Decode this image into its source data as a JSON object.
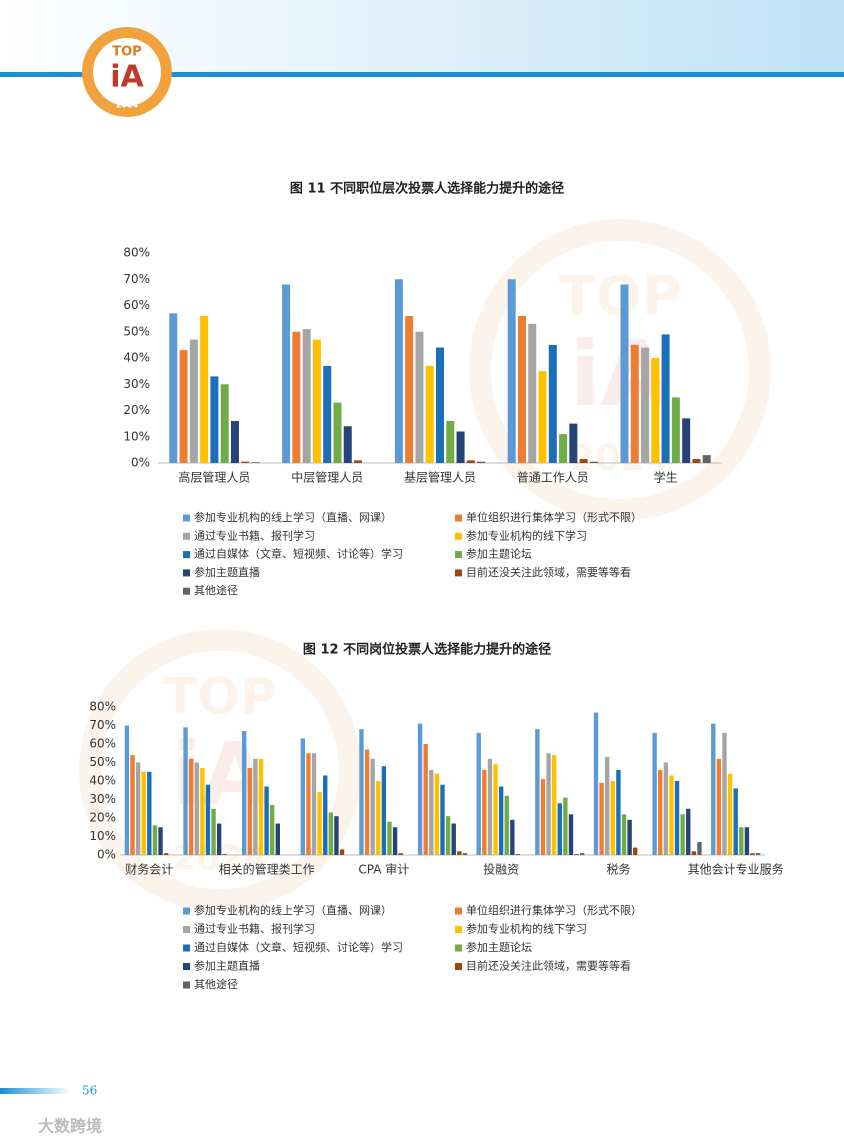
{
  "logo": {
    "top": "TOP",
    "mark": "iA",
    "year": "2024"
  },
  "page_number": "56",
  "source_mark": "大数跨境",
  "chart_data": [
    {
      "type": "bar",
      "title": "图 11 不同职位层次投票人选择能力提升的途径",
      "categories": [
        "高层管理人员",
        "中层管理人员",
        "基层管理人员",
        "普通工作人员",
        "学生"
      ],
      "ylim": [
        0,
        80
      ],
      "yticks": [
        {
          "value": 0,
          "label": "0%"
        },
        {
          "value": 10,
          "label": "10%"
        },
        {
          "value": 20,
          "label": "20%"
        },
        {
          "value": 30,
          "label": "30%"
        },
        {
          "value": 40,
          "label": "40%"
        },
        {
          "value": 50,
          "label": "50%"
        },
        {
          "value": 60,
          "label": "60%"
        },
        {
          "value": 70,
          "label": "70%"
        },
        {
          "value": 80,
          "label": "80%"
        }
      ],
      "series": [
        {
          "name": "参加专业机构的线上学习（直播、网课）",
          "color": "#5b9bd5",
          "values": [
            57,
            68,
            70,
            70,
            68
          ]
        },
        {
          "name": "单位组织进行集体学习（形式不限）",
          "color": "#ed7d31",
          "values": [
            43,
            50,
            56,
            56,
            45
          ]
        },
        {
          "name": "通过专业书籍、报刊学习",
          "color": "#a5a5a5",
          "values": [
            47,
            51,
            50,
            53,
            44
          ]
        },
        {
          "name": "参加专业机构的线下学习",
          "color": "#ffc000",
          "values": [
            56,
            47,
            37,
            35,
            40
          ]
        },
        {
          "name": "通过自媒体（文章、短视频、讨论等）学习",
          "color": "#1b6fb8",
          "values": [
            33,
            37,
            44,
            45,
            49
          ]
        },
        {
          "name": "参加主题论坛",
          "color": "#70ad47",
          "values": [
            30,
            23,
            16,
            11,
            25
          ]
        },
        {
          "name": "参加主题直播",
          "color": "#264478",
          "values": [
            16,
            14,
            12,
            15,
            17
          ]
        },
        {
          "name": "目前还没关注此领域，需要等等看",
          "color": "#9e480e",
          "values": [
            0.5,
            1,
            1,
            1.5,
            1.5
          ]
        },
        {
          "name": "其他途径",
          "color": "#636363",
          "values": [
            0.3,
            0,
            0.5,
            0.5,
            3
          ]
        }
      ]
    },
    {
      "type": "bar",
      "title": "图 12 不同岗位投票人选择能力提升的途径",
      "categories": [
        "财务会计",
        null,
        "相关的管理类工作",
        null,
        "CPA 审计",
        null,
        "投融资",
        null,
        "税务",
        null,
        "其他会计专业服务"
      ],
      "ylim": [
        0,
        80
      ],
      "yticks": [
        {
          "value": 0,
          "label": "0%"
        },
        {
          "value": 10,
          "label": "10%"
        },
        {
          "value": 20,
          "label": "20%"
        },
        {
          "value": 30,
          "label": "30%"
        },
        {
          "value": 40,
          "label": "40%"
        },
        {
          "value": 50,
          "label": "50%"
        },
        {
          "value": 60,
          "label": "60%"
        },
        {
          "value": 70,
          "label": "70%"
        },
        {
          "value": 80,
          "label": "80%"
        }
      ],
      "series": [
        {
          "name": "参加专业机构的线上学习（直播、网课）",
          "color": "#5b9bd5",
          "values": [
            70,
            69,
            67,
            63,
            68,
            71,
            66,
            68,
            77,
            66,
            71
          ]
        },
        {
          "name": "单位组织进行集体学习（形式不限）",
          "color": "#ed7d31",
          "values": [
            54,
            52,
            47,
            55,
            57,
            60,
            46,
            41,
            39,
            46,
            52
          ]
        },
        {
          "name": "通过专业书籍、报刊学习",
          "color": "#a5a5a5",
          "values": [
            50,
            50,
            52,
            55,
            52,
            46,
            52,
            55,
            53,
            50,
            66
          ]
        },
        {
          "name": "参加专业机构的线下学习",
          "color": "#ffc000",
          "values": [
            45,
            47,
            52,
            34,
            40,
            44,
            49,
            54,
            40,
            43,
            44
          ]
        },
        {
          "name": "通过自媒体（文章、短视频、讨论等）学习",
          "color": "#1b6fb8",
          "values": [
            45,
            38,
            37,
            43,
            48,
            38,
            37,
            28,
            46,
            40,
            36
          ]
        },
        {
          "name": "参加主题论坛",
          "color": "#70ad47",
          "values": [
            16,
            25,
            27,
            23,
            18,
            21,
            32,
            31,
            22,
            22,
            15
          ]
        },
        {
          "name": "参加主题直播",
          "color": "#264478",
          "values": [
            15,
            17,
            17,
            21,
            15,
            17,
            19,
            22,
            19,
            25,
            15
          ]
        },
        {
          "name": "目前还没关注此领域，需要等等看",
          "color": "#9e480e",
          "values": [
            1,
            0.5,
            0,
            3,
            1,
            2,
            0.5,
            0.5,
            4,
            2,
            1
          ]
        },
        {
          "name": "其他途径",
          "color": "#636363",
          "values": [
            0,
            0,
            0,
            0,
            0,
            1,
            0,
            1,
            0,
            7,
            1
          ]
        }
      ]
    }
  ]
}
